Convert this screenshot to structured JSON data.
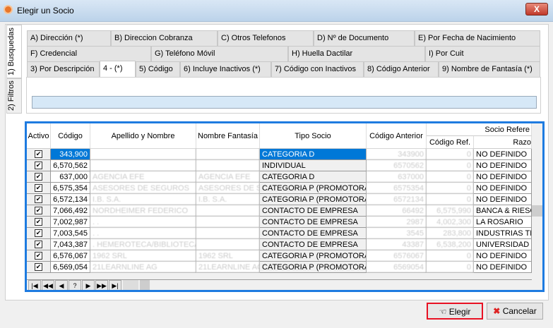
{
  "window": {
    "title": "Elegir un Socio",
    "close_label": "X"
  },
  "side_tabs": [
    "1) Busquedas",
    "2) Filtros"
  ],
  "tabs_row1": [
    "A) Dirección (*)",
    "B) Direccion Cobranza",
    "C) Otros Telefonos",
    "D) Nº de Documento",
    "E) Por Fecha de Nacimiento"
  ],
  "tabs_row2": [
    "F) Credencial",
    "G) Teléfono Móvil",
    "H) Huella Dactilar",
    "I) Por Cuit"
  ],
  "tabs_row3": [
    "3) Por Descripción",
    "4 - (*)",
    "5) Código",
    "6) Incluye Inactivos (*)",
    "7) Código con Inactivos",
    "8) Código Anterior",
    "9) Nombre de Fantasía (*)"
  ],
  "search": {
    "value": ""
  },
  "grid": {
    "headers": {
      "activo": "Activo",
      "codigo": "Código",
      "apellido": "Apellido y Nombre",
      "fantasia": "Nombre Fantasía",
      "tipo": "Tipo Socio",
      "anterior": "Código Anterior",
      "group": "Socio Refere",
      "ref": "Código Ref.",
      "razon": "Razo"
    },
    "rows": [
      [
        "343,900",
        "",
        "",
        "CATEGORIA D",
        "343900",
        "0",
        "NO DEFINIDO"
      ],
      [
        "6,570,562",
        "",
        "",
        "INDIVIDUAL",
        "6570562",
        "0",
        "NO DEFINIDO"
      ],
      [
        "637,000",
        "AGENCIA EFE",
        "AGENCIA EFE",
        "CATEGORIA D",
        "637000",
        "0",
        "NO DEFINIDO"
      ],
      [
        "6,575,354",
        "ASESORES DE SEGUROS",
        "ASESORES DE SE",
        "CATEGORIA P (PROMOTORA)",
        "6575354",
        "0",
        "NO DEFINIDO"
      ],
      [
        "6,572,134",
        "I.B. S.A.",
        "I.B. S.A.",
        "CATEGORIA P (PROMOTORA)",
        "6572134",
        "0",
        "NO DEFINIDO"
      ],
      [
        "7,066,492",
        "NORDHEIMER FEDERICO",
        "",
        "CONTACTO DE EMPRESA",
        "66492",
        "6,575,990",
        "BANCA & RIESG"
      ],
      [
        "7,002,987",
        ". .",
        "",
        "CONTACTO DE EMPRESA",
        "2987",
        "4,002,300",
        "LA ROSARIO"
      ],
      [
        "7,003,545",
        ". .",
        "",
        "CONTACTO DE EMPRESA",
        "3545",
        "283,800",
        "INDUSTRIAS TE"
      ],
      [
        "7,043,387",
        ". HEMEROTECA/BIBLIOTECA C",
        "",
        "CONTACTO DE EMPRESA",
        "43387",
        "6,538,200",
        "UNIVERSIDAD C"
      ],
      [
        "6,576,067",
        "1962 SRL",
        "1962 SRL",
        "CATEGORIA P (PROMOTORA)",
        "6576067",
        "0",
        "NO DEFINIDO"
      ],
      [
        "6,569,054",
        "21LEARNLINE AG",
        "21LEARNLINE AG",
        "CATEGORIA P (PROMOTORA)",
        "6569054",
        "0",
        "NO DEFINIDO"
      ]
    ],
    "nav": [
      "|◀",
      "◀◀",
      "◀",
      "?",
      "▶",
      "▶▶",
      "▶|"
    ]
  },
  "buttons": {
    "elegir": "Elegir",
    "cancelar": "Cancelar"
  },
  "colors": {
    "accent": "#1e7be0",
    "selected_row": "#0078d7",
    "focus_border": "#e81123"
  }
}
